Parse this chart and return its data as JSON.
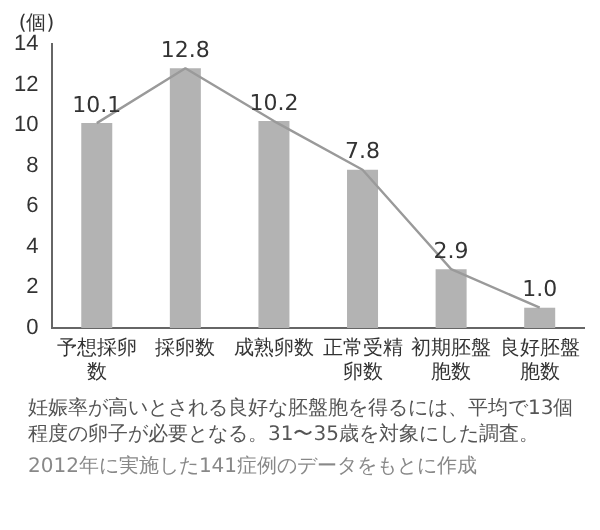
{
  "chart_data": {
    "type": "bar",
    "ylabel": "(個)",
    "categories": [
      "予想採卵数",
      "採卵数",
      "成熟卵数",
      "正常受精卵数",
      "初期胚盤胞数",
      "良好胚盤胞数"
    ],
    "series": [
      {
        "color": "#b3b3b3",
        "values": [
          10.1,
          12.8,
          10.2,
          7.8,
          2.9,
          1.0
        ],
        "value_labels": [
          "10.1",
          "12.8",
          "10.2",
          "7.8",
          "2.9",
          "1.0"
        ]
      },
      {
        "type": "line",
        "color": "#9a9a9a",
        "values": [
          10.1,
          12.8,
          10.2,
          7.8,
          2.9,
          1.0
        ]
      }
    ],
    "ylim": [
      0,
      14
    ],
    "yticks": [
      0,
      2,
      4,
      6,
      8,
      10,
      12,
      14
    ],
    "grid": false,
    "legend": false,
    "marker": "none",
    "annotations": [
      "妊娠率が高いとされる良好な胚盤胞を得るには、平均で13個程度の卵子が必要となる。31〜35歳を対象にした調査。",
      "2012年に実施した141症例のデータをもとに作成"
    ]
  }
}
